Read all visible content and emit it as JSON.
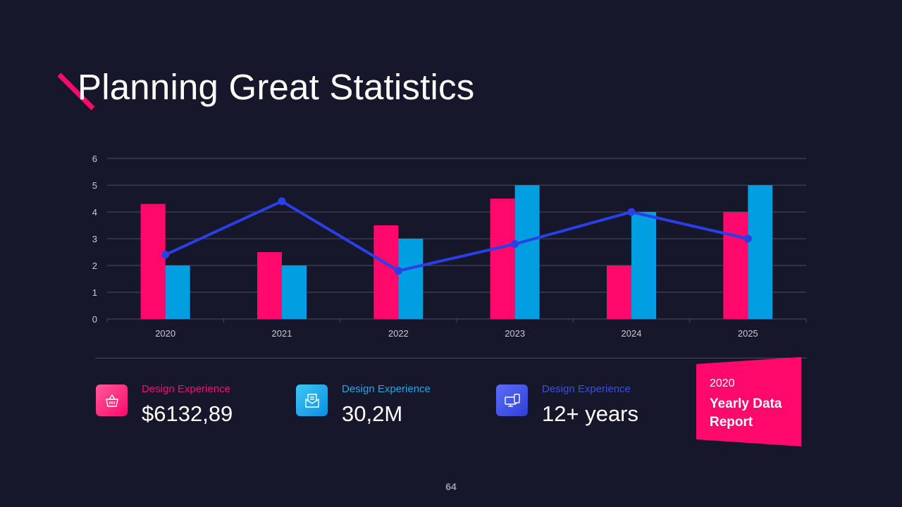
{
  "slide": {
    "title": "Planning Great Statistics",
    "page_number": "64"
  },
  "colors": {
    "background": "#16172a",
    "pink": "#ff0a6c",
    "cyan": "#019fe1",
    "line": "#2a3fe6",
    "grid": "#4a4b5e"
  },
  "chart_data": {
    "type": "bar",
    "categories": [
      "2020",
      "2021",
      "2022",
      "2023",
      "2024",
      "2025"
    ],
    "series": [
      {
        "values": [
          4.3,
          2.5,
          3.5,
          4.5,
          2.0,
          4.0
        ],
        "color": "#ff0a6c",
        "kind": "bar"
      },
      {
        "values": [
          2.0,
          2.0,
          3.0,
          5.0,
          4.0,
          5.0
        ],
        "color": "#019fe1",
        "kind": "bar"
      },
      {
        "values": [
          2.4,
          4.4,
          1.8,
          2.8,
          4.0,
          3.0
        ],
        "color": "#2a3fe6",
        "kind": "line"
      }
    ],
    "ylim": [
      0,
      6
    ],
    "yticks": [
      "0",
      "1",
      "2",
      "3",
      "4",
      "5",
      "6"
    ],
    "grid": true,
    "legend": "none"
  },
  "stats": [
    {
      "label": "Design Experience",
      "value": "$6132,89",
      "color": "#ff0a6c",
      "icon": "basket-icon"
    },
    {
      "label": "Design Experience",
      "value": "30,2M",
      "color": "#1fa8e8",
      "icon": "mail-icon"
    },
    {
      "label": "Design Experience",
      "value": "12+ years",
      "color": "#3b4fe0",
      "icon": "devices-icon"
    }
  ],
  "report": {
    "year": "2020",
    "title": "Yearly Data Report"
  }
}
